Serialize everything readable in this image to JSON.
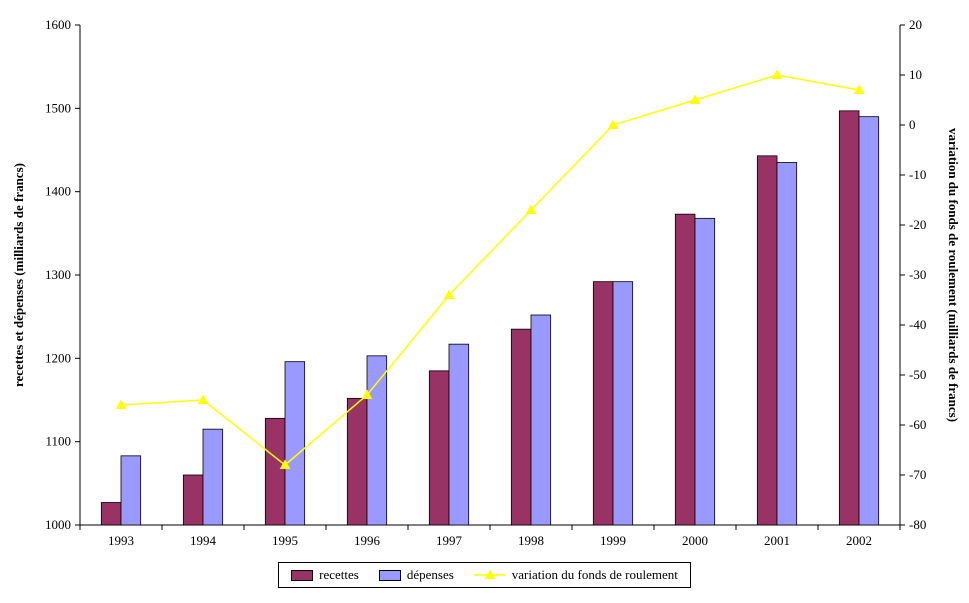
{
  "chart_data": {
    "type": "bar",
    "subtype": "grouped-bars-with-line-overlay",
    "categories": [
      "1993",
      "1994",
      "1995",
      "1996",
      "1997",
      "1998",
      "1999",
      "2000",
      "2001",
      "2002"
    ],
    "series": [
      {
        "name": "recettes",
        "type": "bar",
        "axis": "left",
        "color": "#993366",
        "values": [
          1027,
          1060,
          1128,
          1152,
          1185,
          1235,
          1292,
          1373,
          1443,
          1497
        ]
      },
      {
        "name": "dépenses",
        "type": "bar",
        "axis": "left",
        "color": "#9999FF",
        "values": [
          1083,
          1115,
          1196,
          1203,
          1217,
          1252,
          1292,
          1368,
          1435,
          1490
        ]
      },
      {
        "name": "variation du fonds de roulement",
        "type": "line",
        "axis": "right",
        "color": "#FFFF00",
        "marker": "triangle",
        "values": [
          -56,
          -55,
          -68,
          -54,
          -34,
          -17,
          0,
          5,
          10,
          7
        ]
      }
    ],
    "left_axis": {
      "label": "recettes et dépenses (milliards de francs)",
      "min": 1000,
      "max": 1600,
      "step": 100
    },
    "right_axis": {
      "label": "variation du fonds de roulement (milliards de francs)",
      "min": -80,
      "max": 20,
      "step": 10
    },
    "grid": false,
    "legend_position": "bottom",
    "background": "#ffffff"
  }
}
